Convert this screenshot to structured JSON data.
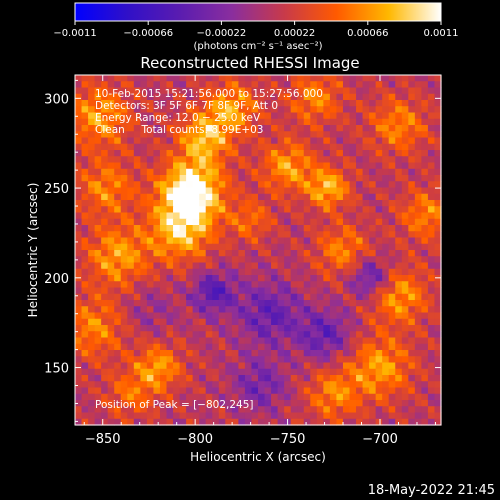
{
  "chart_data": {
    "type": "heatmap",
    "title": "Reconstructed RHESSI Image",
    "xlabel": "Heliocentric X (arcsec)",
    "ylabel": "Heliocentric Y (arcsec)",
    "xlim": [
      -865,
      -667
    ],
    "ylim": [
      118,
      313
    ],
    "x_ticks": [
      -850,
      -800,
      -750,
      -700
    ],
    "x_tick_labels": [
      "−850",
      "−800",
      "−750",
      "−700"
    ],
    "y_ticks": [
      150,
      200,
      250,
      300
    ],
    "y_tick_labels": [
      "150",
      "200",
      "250",
      "300"
    ],
    "colorbar": {
      "label": "(photons cm⁻² s⁻¹ asec⁻²)",
      "range": [
        -0.0011,
        0.0011
      ],
      "ticks": [
        -0.0011,
        -0.00066,
        -0.00022,
        0.00022,
        0.00066,
        0.0011
      ],
      "tick_labels": [
        "−0.0011",
        "−0.00066",
        "−0.00022",
        "0.00022",
        "0.00066",
        "0.0011"
      ],
      "colormap": [
        "#0000ff",
        "#3010c8",
        "#5a1cb0",
        "#8a2e9e",
        "#c83a4a",
        "#ff5a00",
        "#ffb800",
        "#ffffff"
      ]
    },
    "annotations": [
      "10-Feb-2015 15:21:56.000 to 15:27:56.000",
      "Detectors: 3F 5F 6F 7F 8F 9F, Att 0",
      "Energy Range: 12.0 − 25.0 keV",
      "Clean     Total counts: 8.99E+03"
    ],
    "peak_label": "Position of Peak = [−802,245]",
    "peak": [
      -802,
      245
    ],
    "peak_value": 0.0011,
    "blobs": [
      {
        "x": -802,
        "y": 248,
        "v": 0.0011,
        "s": 12
      },
      {
        "x": -808,
        "y": 226,
        "v": 0.0007,
        "s": 12
      },
      {
        "x": -795,
        "y": 278,
        "v": 0.0007,
        "s": 10
      },
      {
        "x": -780,
        "y": 295,
        "v": 0.0006,
        "s": 10
      },
      {
        "x": -852,
        "y": 290,
        "v": 0.0006,
        "s": 12
      },
      {
        "x": -848,
        "y": 250,
        "v": 0.0005,
        "s": 11
      },
      {
        "x": -842,
        "y": 212,
        "v": 0.0006,
        "s": 12
      },
      {
        "x": -855,
        "y": 172,
        "v": 0.0005,
        "s": 12
      },
      {
        "x": -820,
        "y": 150,
        "v": 0.0006,
        "s": 9
      },
      {
        "x": -835,
        "y": 135,
        "v": 0.0004,
        "s": 9
      },
      {
        "x": -750,
        "y": 262,
        "v": 0.0006,
        "s": 10
      },
      {
        "x": -735,
        "y": 300,
        "v": 0.0005,
        "s": 10
      },
      {
        "x": -728,
        "y": 250,
        "v": 0.0007,
        "s": 8
      },
      {
        "x": -720,
        "y": 215,
        "v": 0.0005,
        "s": 10
      },
      {
        "x": -690,
        "y": 285,
        "v": 0.0005,
        "s": 11
      },
      {
        "x": -675,
        "y": 235,
        "v": 0.0005,
        "s": 10
      },
      {
        "x": -690,
        "y": 190,
        "v": 0.0006,
        "s": 11
      },
      {
        "x": -700,
        "y": 150,
        "v": 0.0006,
        "s": 12
      },
      {
        "x": -725,
        "y": 135,
        "v": 0.0005,
        "s": 10
      },
      {
        "x": -770,
        "y": 232,
        "v": 0.0004,
        "s": 8
      },
      {
        "x": -760,
        "y": 180,
        "v": -0.0005,
        "s": 12
      },
      {
        "x": -790,
        "y": 192,
        "v": -0.0006,
        "s": 8
      },
      {
        "x": -705,
        "y": 200,
        "v": -0.0006,
        "s": 8
      },
      {
        "x": -730,
        "y": 168,
        "v": -0.0005,
        "s": 10
      },
      {
        "x": -765,
        "y": 140,
        "v": -0.0004,
        "s": 10
      },
      {
        "x": -825,
        "y": 182,
        "v": -0.0002,
        "s": 10
      }
    ]
  },
  "footer": {
    "timestamp": "18-May-2022 21:45"
  }
}
